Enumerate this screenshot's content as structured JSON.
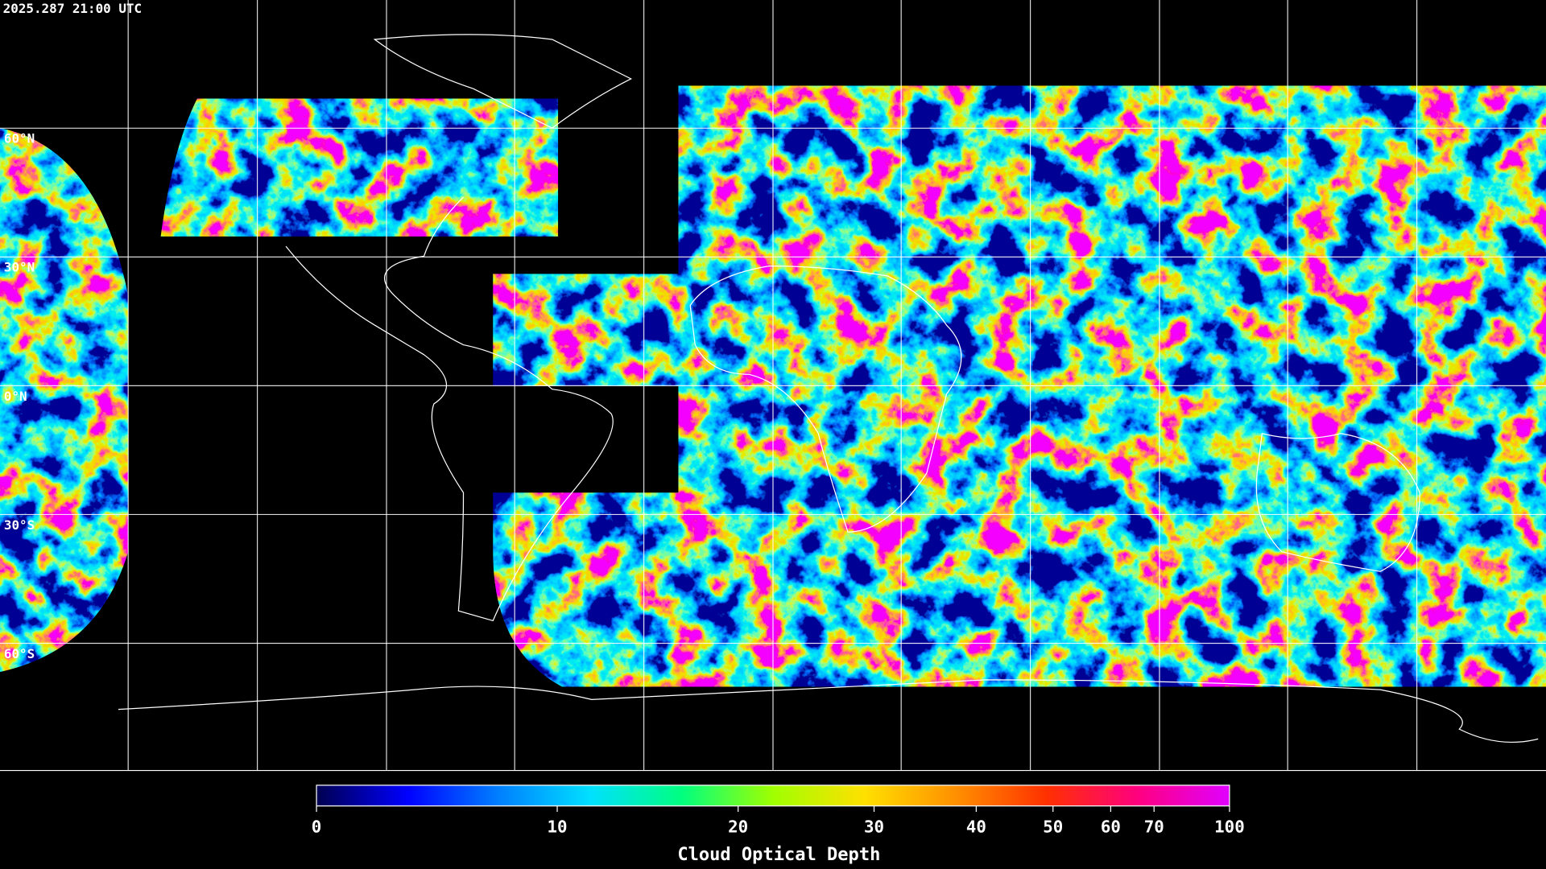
{
  "header": {
    "timestamp": "2025.287 21:00 UTC"
  },
  "map": {
    "lat_lines": [
      {
        "value": 60,
        "label": "60°N"
      },
      {
        "value": 30,
        "label": "30°N"
      },
      {
        "value": 0,
        "label": "0°N"
      },
      {
        "value": -30,
        "label": "30°S"
      },
      {
        "value": -60,
        "label": "60°S"
      }
    ]
  },
  "colorbar": {
    "label": "Cloud Optical Depth",
    "colors": [
      "#000050",
      "#0000ff",
      "#0080ff",
      "#00e0ff",
      "#00ff80",
      "#a0ff00",
      "#ffe000",
      "#ff9000",
      "#ff3000",
      "#ff0080",
      "#e000ff"
    ],
    "range": [
      0,
      100
    ],
    "ticks": [
      0,
      10,
      20,
      30,
      40,
      50,
      60,
      70,
      100
    ]
  }
}
